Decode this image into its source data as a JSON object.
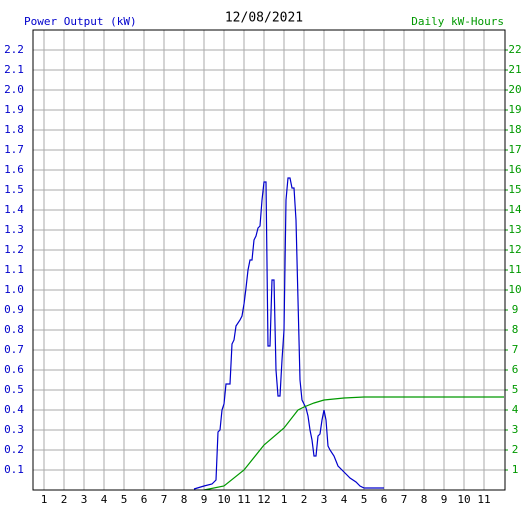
{
  "chart_data": {
    "type": "line",
    "title": "12/08/2021",
    "y_label": "Power Output (kW)",
    "y2_label": "Daily kW-Hours",
    "xlim": [
      0.45,
      24.05
    ],
    "xticks": [
      1,
      2,
      3,
      4,
      5,
      6,
      7,
      8,
      9,
      10,
      11,
      12,
      {
        "value": 13,
        "label": "1"
      },
      {
        "value": 14,
        "label": "2"
      },
      {
        "value": 15,
        "label": "3"
      },
      {
        "value": 16,
        "label": "4"
      },
      {
        "value": 17,
        "label": "5"
      },
      {
        "value": 18,
        "label": "6"
      },
      {
        "value": 19,
        "label": "7"
      },
      {
        "value": 20,
        "label": "8"
      },
      {
        "value": 21,
        "label": "9"
      },
      {
        "value": 22,
        "label": "10"
      },
      {
        "value": 23,
        "label": "11"
      }
    ],
    "ylim": [
      0,
      2.3
    ],
    "yticks": [
      0.1,
      0.2,
      0.3,
      0.4,
      0.5,
      0.6,
      0.7,
      0.8,
      0.9,
      {
        "value": 1.0,
        "label": "1.0"
      },
      1.1,
      1.2,
      1.3,
      1.4,
      1.5,
      1.6,
      1.7,
      1.8,
      1.9,
      {
        "value": 2.0,
        "label": "2.0"
      },
      2.1,
      2.2
    ],
    "y2lim": [
      0,
      23
    ],
    "y2ticks": [
      1,
      2,
      3,
      4,
      5,
      6,
      7,
      8,
      9,
      10,
      11,
      12,
      13,
      14,
      15,
      16,
      17,
      18,
      19,
      20,
      21,
      22
    ],
    "grid": true,
    "series": [
      {
        "name": "Power Output (kW)",
        "color": "#0000cc",
        "x": [
          8.5,
          9.0,
          9.4,
          9.6,
          9.7,
          9.8,
          9.9,
          10.0,
          10.1,
          10.3,
          10.4,
          10.5,
          10.6,
          10.8,
          10.9,
          11.0,
          11.1,
          11.2,
          11.3,
          11.4,
          11.5,
          11.6,
          11.7,
          11.8,
          11.9,
          12.0,
          12.1,
          12.2,
          12.3,
          12.4,
          12.5,
          12.6,
          12.7,
          12.8,
          12.9,
          13.0,
          13.1,
          13.2,
          13.3,
          13.4,
          13.5,
          13.6,
          13.7,
          13.8,
          13.9,
          14.0,
          14.1,
          14.2,
          14.3,
          14.4,
          14.5,
          14.6,
          14.7,
          14.8,
          14.9,
          15.0,
          15.1,
          15.2,
          15.3,
          15.5,
          15.7,
          15.9,
          16.1,
          16.3,
          16.6,
          16.8,
          17.0,
          18.0
        ],
        "values": [
          0.005,
          0.02,
          0.03,
          0.05,
          0.29,
          0.3,
          0.4,
          0.43,
          0.53,
          0.53,
          0.73,
          0.75,
          0.82,
          0.85,
          0.87,
          0.93,
          1.01,
          1.1,
          1.15,
          1.15,
          1.25,
          1.27,
          1.31,
          1.32,
          1.45,
          1.54,
          1.54,
          0.72,
          0.72,
          1.05,
          1.05,
          0.6,
          0.47,
          0.47,
          0.65,
          0.8,
          1.45,
          1.56,
          1.56,
          1.51,
          1.51,
          1.35,
          0.95,
          0.55,
          0.45,
          0.43,
          0.41,
          0.37,
          0.3,
          0.25,
          0.17,
          0.17,
          0.27,
          0.28,
          0.35,
          0.4,
          0.35,
          0.22,
          0.2,
          0.17,
          0.12,
          0.1,
          0.08,
          0.06,
          0.04,
          0.02,
          0.01,
          0.01
        ]
      },
      {
        "name": "Daily kW-Hours",
        "color": "#009900",
        "axis": "y2",
        "x": [
          9.0,
          10.0,
          11.0,
          12.0,
          13.0,
          13.7,
          14.0,
          14.5,
          15.0,
          16.0,
          17.0,
          24.0
        ],
        "values": [
          0,
          0.2,
          1.0,
          2.25,
          3.1,
          4.0,
          4.15,
          4.35,
          4.5,
          4.6,
          4.65,
          4.65
        ]
      }
    ]
  }
}
